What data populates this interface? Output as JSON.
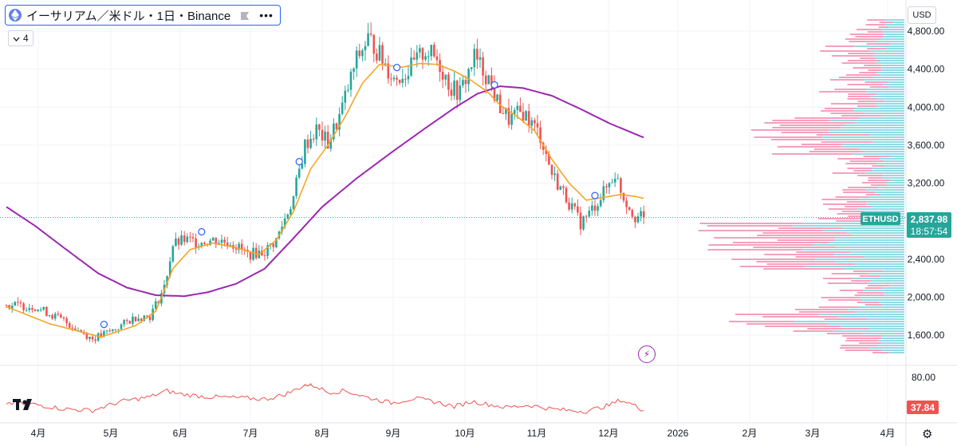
{
  "header": {
    "title": "イーサリアム／米ドル・1日・Binance",
    "dots": "•••",
    "indicator_count": "4",
    "currency": "USD"
  },
  "price_scale": {
    "ticks": [
      "4,800.00",
      "4,400.00",
      "4,000.00",
      "3,600.00",
      "3,200.00",
      "2,400.00",
      "2,000.00",
      "1,600.00"
    ],
    "ticks_values": [
      4800,
      4400,
      4000,
      3600,
      3200,
      2400,
      2000,
      1600
    ]
  },
  "last_price": {
    "symbol": "ETHUSD",
    "price": "2,837.98",
    "value": 2837.98,
    "countdown": "18:57:54"
  },
  "rsi": {
    "level_label": "80.00",
    "level": 80,
    "value_label": "37.84",
    "value": 37.84
  },
  "time_axis": {
    "labels": [
      "4月",
      "5月",
      "6月",
      "7月",
      "8月",
      "9月",
      "10月",
      "11月",
      "12月",
      "2026",
      "2月",
      "3月",
      "4月"
    ]
  },
  "colors": {
    "up": "#26a69a",
    "down": "#ef5350",
    "ma_fast": "#f5a623",
    "ma_slow": "#9c27b0",
    "vp_up": "#7fd3df",
    "vp_down": "#f48fb1",
    "rsi": "#ef5350",
    "tag": "#26a69a"
  },
  "chart_data": {
    "type": "candlestick",
    "title": "イーサリアム／米ドル・1日・Binance",
    "ylim": [
      1450,
      4950
    ],
    "x_labels": [
      "4月",
      "5月",
      "6月",
      "7月",
      "8月",
      "9月",
      "10月",
      "11月",
      "12月",
      "2026",
      "2月",
      "3月",
      "4月"
    ],
    "price_path": [
      [
        0,
        1920
      ],
      [
        10,
        1900
      ],
      [
        20,
        1750
      ],
      [
        30,
        1560
      ],
      [
        37,
        1650
      ],
      [
        45,
        1790
      ],
      [
        50,
        1800
      ],
      [
        55,
        2100
      ],
      [
        58,
        2550
      ],
      [
        62,
        2600
      ],
      [
        66,
        2580
      ],
      [
        72,
        2600
      ],
      [
        78,
        2580
      ],
      [
        84,
        2450
      ],
      [
        90,
        2480
      ],
      [
        94,
        2600
      ],
      [
        100,
        3050
      ],
      [
        104,
        3600
      ],
      [
        108,
        3760
      ],
      [
        112,
        3620
      ],
      [
        116,
        3900
      ],
      [
        119,
        4200
      ],
      [
        122,
        4500
      ],
      [
        126,
        4720
      ],
      [
        128,
        4650
      ],
      [
        132,
        4450
      ],
      [
        135,
        4300
      ],
      [
        140,
        4380
      ],
      [
        146,
        4600
      ],
      [
        150,
        4500
      ],
      [
        155,
        4200
      ],
      [
        158,
        4150
      ],
      [
        163,
        4530
      ],
      [
        168,
        4300
      ],
      [
        171,
        4050
      ],
      [
        175,
        3870
      ],
      [
        180,
        3950
      ],
      [
        186,
        3700
      ],
      [
        190,
        3300
      ],
      [
        195,
        3050
      ],
      [
        200,
        2780
      ],
      [
        203,
        2880
      ],
      [
        208,
        3100
      ],
      [
        212,
        3300
      ],
      [
        215,
        3050
      ],
      [
        219,
        2850
      ],
      [
        222,
        2838
      ]
    ],
    "ma_fast_path": [
      [
        0,
        1900
      ],
      [
        15,
        1720
      ],
      [
        33,
        1580
      ],
      [
        45,
        1700
      ],
      [
        52,
        1850
      ],
      [
        58,
        2300
      ],
      [
        64,
        2500
      ],
      [
        72,
        2570
      ],
      [
        80,
        2520
      ],
      [
        88,
        2450
      ],
      [
        94,
        2600
      ],
      [
        100,
        2900
      ],
      [
        106,
        3350
      ],
      [
        112,
        3600
      ],
      [
        118,
        3900
      ],
      [
        124,
        4250
      ],
      [
        130,
        4450
      ],
      [
        138,
        4420
      ],
      [
        144,
        4460
      ],
      [
        150,
        4450
      ],
      [
        156,
        4380
      ],
      [
        162,
        4280
      ],
      [
        168,
        4150
      ],
      [
        172,
        4020
      ],
      [
        178,
        3900
      ],
      [
        184,
        3750
      ],
      [
        190,
        3450
      ],
      [
        196,
        3200
      ],
      [
        202,
        3020
      ],
      [
        208,
        3050
      ],
      [
        214,
        3080
      ],
      [
        219,
        3060
      ],
      [
        222,
        3040
      ]
    ],
    "ma_slow_path": [
      [
        0,
        2950
      ],
      [
        10,
        2750
      ],
      [
        20,
        2520
      ],
      [
        32,
        2250
      ],
      [
        42,
        2100
      ],
      [
        52,
        2020
      ],
      [
        62,
        2010
      ],
      [
        70,
        2050
      ],
      [
        80,
        2140
      ],
      [
        90,
        2300
      ],
      [
        100,
        2620
      ],
      [
        110,
        2950
      ],
      [
        122,
        3250
      ],
      [
        134,
        3520
      ],
      [
        146,
        3780
      ],
      [
        156,
        3990
      ],
      [
        164,
        4140
      ],
      [
        172,
        4220
      ],
      [
        180,
        4200
      ],
      [
        190,
        4120
      ],
      [
        200,
        3980
      ],
      [
        210,
        3830
      ],
      [
        222,
        3680
      ]
    ],
    "rsi_path": [
      [
        0,
        48
      ],
      [
        10,
        46
      ],
      [
        20,
        40
      ],
      [
        30,
        38
      ],
      [
        40,
        50
      ],
      [
        50,
        56
      ],
      [
        56,
        64
      ],
      [
        60,
        60
      ],
      [
        70,
        56
      ],
      [
        80,
        55
      ],
      [
        90,
        53
      ],
      [
        96,
        58
      ],
      [
        100,
        64
      ],
      [
        104,
        72
      ],
      [
        108,
        70
      ],
      [
        112,
        62
      ],
      [
        118,
        64
      ],
      [
        126,
        55
      ],
      [
        134,
        48
      ],
      [
        142,
        54
      ],
      [
        150,
        49
      ],
      [
        156,
        43
      ],
      [
        162,
        50
      ],
      [
        168,
        46
      ],
      [
        174,
        42
      ],
      [
        182,
        45
      ],
      [
        190,
        40
      ],
      [
        196,
        38
      ],
      [
        202,
        37
      ],
      [
        210,
        45
      ],
      [
        214,
        52
      ],
      [
        218,
        46
      ],
      [
        222,
        37.84
      ]
    ],
    "rsi_ylim": [
      30,
      85
    ]
  }
}
